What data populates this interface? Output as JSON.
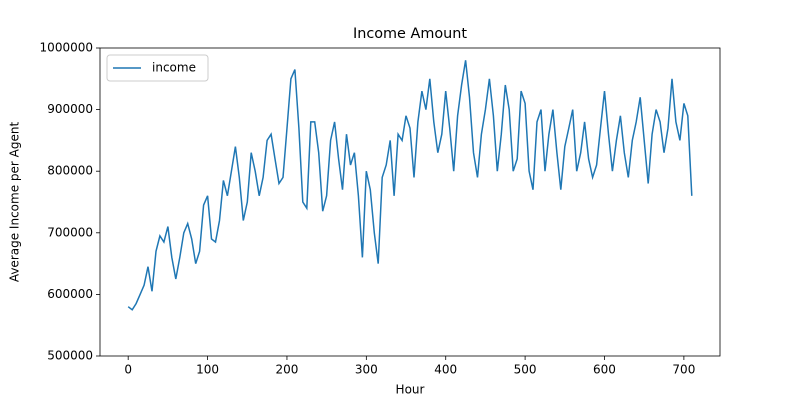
{
  "chart_data": {
    "type": "line",
    "title": "Income Amount",
    "x_label": "Hour",
    "y_label": "Average Income per Agent",
    "x": [
      0,
      5,
      10,
      15,
      20,
      25,
      30,
      35,
      40,
      45,
      50,
      55,
      60,
      65,
      70,
      75,
      80,
      85,
      90,
      95,
      100,
      105,
      110,
      115,
      120,
      125,
      130,
      135,
      140,
      145,
      150,
      155,
      160,
      165,
      170,
      175,
      180,
      185,
      190,
      195,
      200,
      205,
      210,
      215,
      220,
      225,
      230,
      235,
      240,
      245,
      250,
      255,
      260,
      265,
      270,
      275,
      280,
      285,
      290,
      295,
      300,
      305,
      310,
      315,
      320,
      325,
      330,
      335,
      340,
      345,
      350,
      355,
      360,
      365,
      370,
      375,
      380,
      385,
      390,
      395,
      400,
      405,
      410,
      415,
      420,
      425,
      430,
      435,
      440,
      445,
      450,
      455,
      460,
      465,
      470,
      475,
      480,
      485,
      490,
      495,
      500,
      505,
      510,
      515,
      520,
      525,
      530,
      535,
      540,
      545,
      550,
      555,
      560,
      565,
      570,
      575,
      580,
      585,
      590,
      595,
      600,
      605,
      610,
      615,
      620,
      625,
      630,
      635,
      640,
      645,
      650,
      655,
      660,
      665,
      670,
      675,
      680,
      685,
      690,
      695,
      700,
      705,
      710
    ],
    "series": [
      {
        "name": "income",
        "color": "#1f77b4",
        "values": [
          580000,
          575000,
          585000,
          600000,
          615000,
          645000,
          605000,
          670000,
          695000,
          685000,
          710000,
          660000,
          625000,
          660000,
          700000,
          715000,
          690000,
          650000,
          670000,
          745000,
          760000,
          690000,
          685000,
          720000,
          785000,
          760000,
          800000,
          840000,
          790000,
          720000,
          750000,
          830000,
          800000,
          760000,
          790000,
          850000,
          860000,
          820000,
          780000,
          790000,
          870000,
          950000,
          965000,
          870000,
          750000,
          740000,
          880000,
          880000,
          830000,
          735000,
          760000,
          850000,
          880000,
          820000,
          770000,
          860000,
          810000,
          830000,
          760000,
          660000,
          800000,
          770000,
          700000,
          650000,
          790000,
          810000,
          850000,
          760000,
          860000,
          850000,
          890000,
          870000,
          790000,
          880000,
          930000,
          900000,
          950000,
          880000,
          830000,
          860000,
          930000,
          870000,
          800000,
          890000,
          940000,
          980000,
          920000,
          830000,
          790000,
          860000,
          900000,
          950000,
          890000,
          800000,
          860000,
          940000,
          900000,
          800000,
          820000,
          930000,
          910000,
          800000,
          770000,
          880000,
          900000,
          800000,
          860000,
          900000,
          830000,
          770000,
          840000,
          870000,
          900000,
          800000,
          830000,
          880000,
          820000,
          790000,
          810000,
          870000,
          930000,
          860000,
          800000,
          850000,
          890000,
          830000,
          790000,
          850000,
          880000,
          920000,
          850000,
          780000,
          860000,
          900000,
          880000,
          830000,
          870000,
          950000,
          880000,
          850000,
          910000,
          890000,
          760000
        ]
      }
    ],
    "xlim": [
      -35.5,
      745.5
    ],
    "xticks": [
      0,
      100,
      200,
      300,
      400,
      500,
      600,
      700
    ],
    "ylim": [
      500000,
      1000000
    ],
    "yticks": [
      500000,
      600000,
      700000,
      800000,
      900000,
      1000000
    ],
    "legend": "upper left"
  }
}
